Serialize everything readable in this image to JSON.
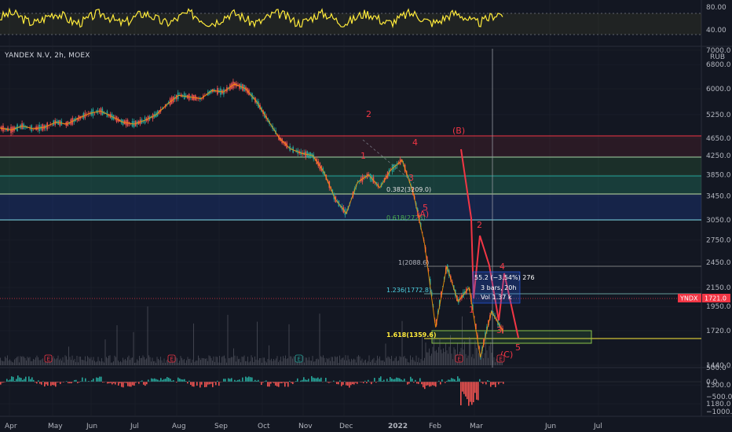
{
  "symbol": {
    "title": "YANDEX N.V, 2h, MOEX",
    "currency": "RUB",
    "ticker_tag": "YNDX",
    "last_price": "1721.0"
  },
  "oscillator": {
    "levels": [
      "80.00",
      "40.00"
    ]
  },
  "volume_panel": {
    "levels": [
      "0.0",
      "−500.0",
      "−1000.0"
    ],
    "top_tick": "500.0"
  },
  "colors": {
    "background": "#131722",
    "bull": "#26a69a",
    "bear": "#ef5350",
    "accent_red": "#f23645",
    "oscillator": "#ffeb3b",
    "fib_green": "#4caf50",
    "fib_teal": "#00bcd4",
    "fib_blue": "#2962ff"
  },
  "annotations": {
    "fib_0382": "0.382(3209.0)",
    "fib_0618": "0.618(2723)",
    "fib_1": "1(2088.6)",
    "fib_1236": "1.236(1772.8)",
    "fib_1618": "1.618(1359.6)",
    "wave_A": "(A)",
    "wave_B": "(B)",
    "wave_C": "(C)",
    "wave_1a": "1",
    "wave_2a": "2",
    "wave_3a": "3",
    "wave_4a": "4",
    "wave_5a": "5",
    "wave_1b": "1",
    "wave_2b": "2",
    "wave_3b": "3",
    "wave_4b": "4",
    "wave_5b": "5",
    "measure_line1": "55.2  (−3.54%) 276",
    "measure_line2": "3 bars, 20h",
    "measure_line3": "Vol  1.37 k",
    "earnings_markers": [
      "E",
      "E",
      "E",
      "E",
      "E"
    ]
  },
  "chart_data": {
    "type": "line",
    "title": "YANDEX N.V, 2h, MOEX",
    "x_ticks": [
      "Apr",
      "May",
      "Jun",
      "Jul",
      "Aug",
      "Sep",
      "Oct",
      "Nov",
      "Dec",
      "2022",
      "Feb",
      "Mar",
      "Jun",
      "Jul"
    ],
    "y_ticks": [
      "7000.0",
      "6800.0",
      "6000.0",
      "5250.0",
      "4650.0",
      "4250.0",
      "3850.0",
      "3450.0",
      "3050.0",
      "2750.0",
      "2450.0",
      "2150.0",
      "1950.0",
      "1720.0",
      "1440.0",
      "1300.0",
      "1180.0"
    ],
    "ylim": [
      1100,
      7000
    ],
    "y_scale": "log",
    "series": [
      {
        "values": [
          4900,
          4850,
          4950,
          4880,
          4920,
          5050,
          5000,
          5150,
          5280,
          5350,
          5200,
          5050,
          5000,
          5100,
          5250,
          5550,
          5800,
          5750,
          5700,
          5950,
          5900,
          6150,
          6000,
          5600,
          5100,
          4650,
          4400,
          4300,
          4250,
          3900,
          3400,
          3150,
          3700,
          3850,
          3600,
          3950,
          4150,
          3500,
          2700,
          1750,
          2400,
          2000,
          2150,
          1500,
          1900,
          1721
        ]
      }
    ],
    "fib_levels": [
      {
        "label": "0.382(3209.0)",
        "value": 3209.0
      },
      {
        "label": "0.618(2723)",
        "value": 2723
      },
      {
        "label": "1(2088.6)",
        "value": 2088.6
      },
      {
        "label": "1.236(1772.8)",
        "value": 1772.8
      },
      {
        "label": "1.618(1359.6)",
        "value": 1359.6
      }
    ],
    "oscillator_range": [
      0,
      100
    ],
    "grid": true
  }
}
